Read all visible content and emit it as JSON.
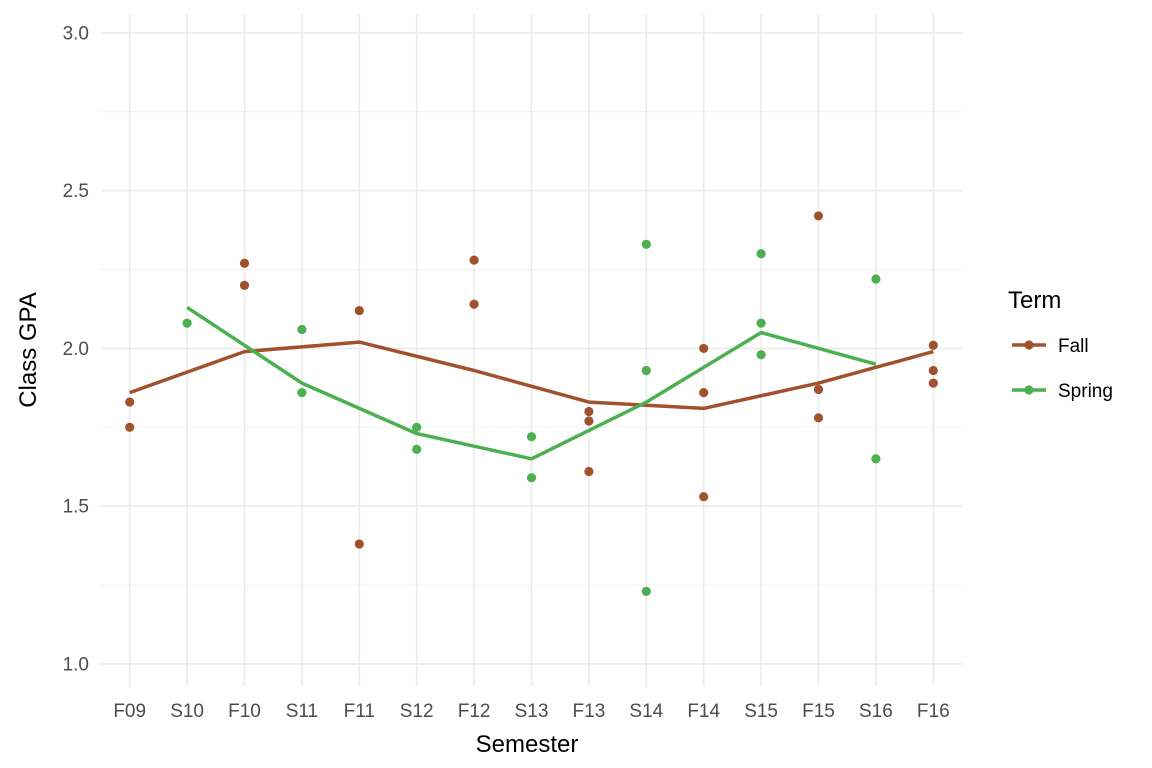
{
  "chart_data": {
    "type": "line",
    "xlabel": "Semester",
    "ylabel": "Class GPA",
    "categories": [
      "F09",
      "S10",
      "F10",
      "S11",
      "F11",
      "S12",
      "F12",
      "S13",
      "F13",
      "S14",
      "F14",
      "S15",
      "F15",
      "S16",
      "F16"
    ],
    "ylim": [
      0.93,
      3.06
    ],
    "yticks": [
      "1.0",
      "1.5",
      "2.0",
      "2.5",
      "3.0"
    ],
    "grid": true,
    "legend": {
      "title": "Term",
      "placement": "right"
    },
    "series": [
      {
        "name": "Fall",
        "color": "#a0522d",
        "trend": [
          {
            "x": "F09",
            "y": 1.86
          },
          {
            "x": "F10",
            "y": 1.99
          },
          {
            "x": "F11",
            "y": 2.02
          },
          {
            "x": "F12",
            "y": 1.93
          },
          {
            "x": "F13",
            "y": 1.83
          },
          {
            "x": "F14",
            "y": 1.81
          },
          {
            "x": "F15",
            "y": 1.89
          },
          {
            "x": "F16",
            "y": 1.99
          }
        ],
        "points": [
          {
            "x": "F09",
            "y": 1.83
          },
          {
            "x": "F09",
            "y": 1.75
          },
          {
            "x": "F10",
            "y": 2.27
          },
          {
            "x": "F10",
            "y": 2.2
          },
          {
            "x": "F11",
            "y": 2.12
          },
          {
            "x": "F11",
            "y": 1.38
          },
          {
            "x": "F12",
            "y": 2.28
          },
          {
            "x": "F12",
            "y": 2.14
          },
          {
            "x": "F13",
            "y": 1.8
          },
          {
            "x": "F13",
            "y": 1.77
          },
          {
            "x": "F13",
            "y": 1.61
          },
          {
            "x": "F14",
            "y": 2.0
          },
          {
            "x": "F14",
            "y": 1.86
          },
          {
            "x": "F14",
            "y": 1.53
          },
          {
            "x": "F15",
            "y": 2.42
          },
          {
            "x": "F15",
            "y": 1.87
          },
          {
            "x": "F15",
            "y": 1.78
          },
          {
            "x": "F16",
            "y": 2.01
          },
          {
            "x": "F16",
            "y": 1.93
          },
          {
            "x": "F16",
            "y": 1.89
          }
        ]
      },
      {
        "name": "Spring",
        "color": "#4caf50",
        "trend": [
          {
            "x": "S10",
            "y": 2.13
          },
          {
            "x": "S11",
            "y": 1.89
          },
          {
            "x": "S12",
            "y": 1.73
          },
          {
            "x": "S13",
            "y": 1.65
          },
          {
            "x": "S14",
            "y": 1.83
          },
          {
            "x": "S15",
            "y": 2.05
          },
          {
            "x": "S16",
            "y": 1.95
          }
        ],
        "points": [
          {
            "x": "S10",
            "y": 2.08
          },
          {
            "x": "S11",
            "y": 2.06
          },
          {
            "x": "S11",
            "y": 1.86
          },
          {
            "x": "S12",
            "y": 1.75
          },
          {
            "x": "S12",
            "y": 1.68
          },
          {
            "x": "S13",
            "y": 1.72
          },
          {
            "x": "S13",
            "y": 1.59
          },
          {
            "x": "S14",
            "y": 2.33
          },
          {
            "x": "S14",
            "y": 1.93
          },
          {
            "x": "S14",
            "y": 1.23
          },
          {
            "x": "S15",
            "y": 2.3
          },
          {
            "x": "S15",
            "y": 2.08
          },
          {
            "x": "S15",
            "y": 1.98
          },
          {
            "x": "S16",
            "y": 2.22
          },
          {
            "x": "S16",
            "y": 1.65
          }
        ]
      }
    ]
  }
}
